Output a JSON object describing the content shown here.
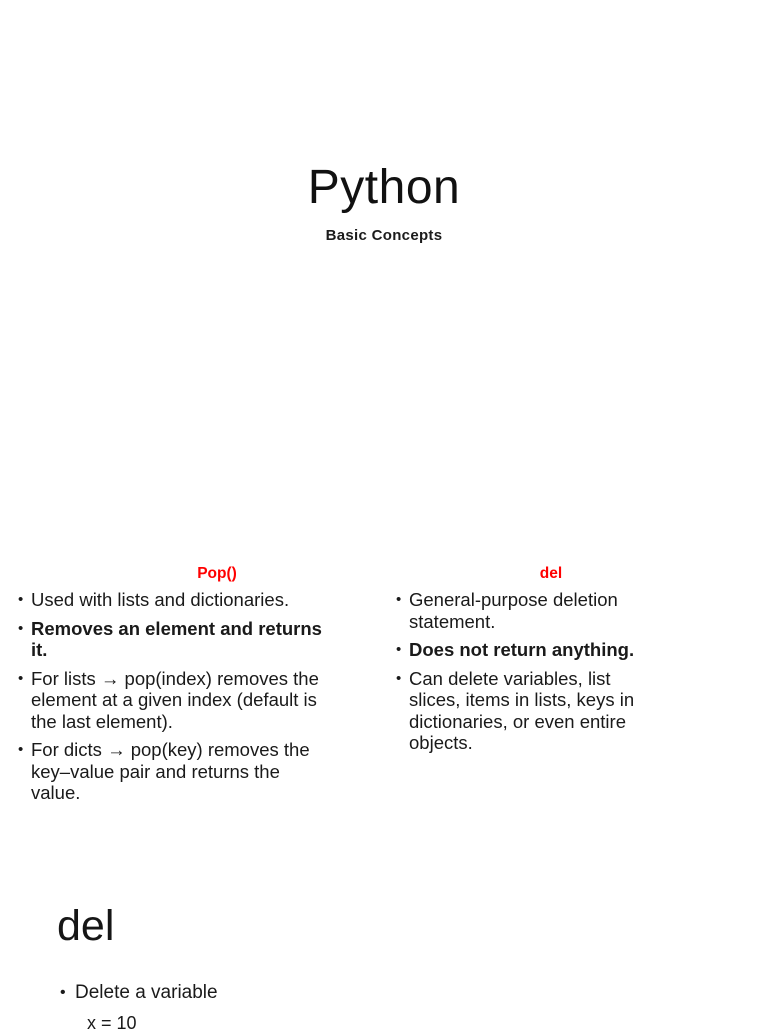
{
  "colors": {
    "background": "#ffffff",
    "text": "#1a1a1a",
    "accent_red": "#ff0000"
  },
  "title_slide": {
    "title": "Python",
    "subtitle": "Basic Concepts"
  },
  "comparison_slide": {
    "left": {
      "header": "Pop()",
      "bullets": [
        {
          "text": "Used with lists and dictionaries.",
          "bold": false
        },
        {
          "text": "Removes an element and returns\nit.",
          "bold": true
        },
        {
          "text": "For lists → pop(index) removes the\nelement at a given index (default is\nthe last element).",
          "bold": false
        },
        {
          "text": "For dicts → pop(key) removes the\nkey–value pair and returns the\nvalue.",
          "bold": false
        }
      ]
    },
    "right": {
      "header": "del",
      "bullets": [
        {
          "text": "General-purpose deletion\nstatement.",
          "bold": false
        },
        {
          "text": "Does not return anything.",
          "bold": true
        },
        {
          "text": "Can delete variables, list\nslices, items in lists, keys in\ndictionaries, or even entire\nobjects.",
          "bold": false
        }
      ]
    }
  },
  "del_slide": {
    "heading": "del",
    "bullet": "Delete a variable",
    "code_line": "x = 10"
  }
}
